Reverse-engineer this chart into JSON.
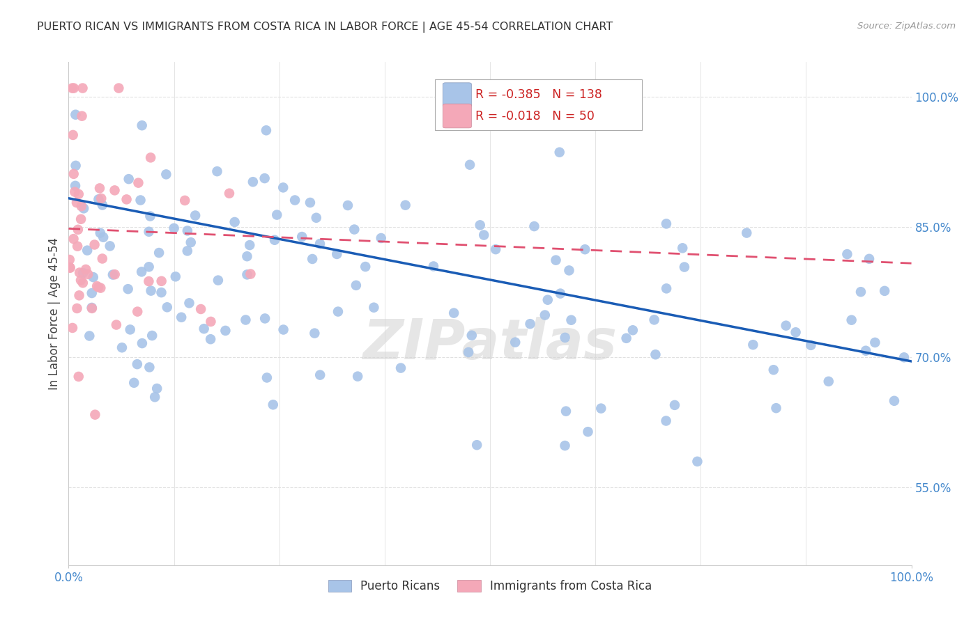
{
  "title": "PUERTO RICAN VS IMMIGRANTS FROM COSTA RICA IN LABOR FORCE | AGE 45-54 CORRELATION CHART",
  "source": "Source: ZipAtlas.com",
  "ylabel": "In Labor Force | Age 45-54",
  "xlim": [
    0.0,
    1.0
  ],
  "ylim": [
    0.46,
    1.04
  ],
  "blue_R": -0.385,
  "blue_N": 138,
  "pink_R": -0.018,
  "pink_N": 50,
  "blue_color": "#a8c4e8",
  "pink_color": "#f4a8b8",
  "blue_line_color": "#1a5cb5",
  "pink_line_color": "#e05070",
  "background_color": "#ffffff",
  "grid_color": "#e0e0e0",
  "axis_color": "#4488cc",
  "ytick_values": [
    0.55,
    0.7,
    0.85,
    1.0
  ],
  "ytick_labels": [
    "55.0%",
    "70.0%",
    "85.0%",
    "100.0%"
  ],
  "blue_trend_x": [
    0.0,
    1.0
  ],
  "blue_trend_y": [
    0.883,
    0.695
  ],
  "pink_trend_x": [
    0.0,
    1.0
  ],
  "pink_trend_y": [
    0.848,
    0.808
  ],
  "watermark": "ZIPatlas",
  "figsize": [
    14.06,
    8.92
  ],
  "dpi": 100
}
